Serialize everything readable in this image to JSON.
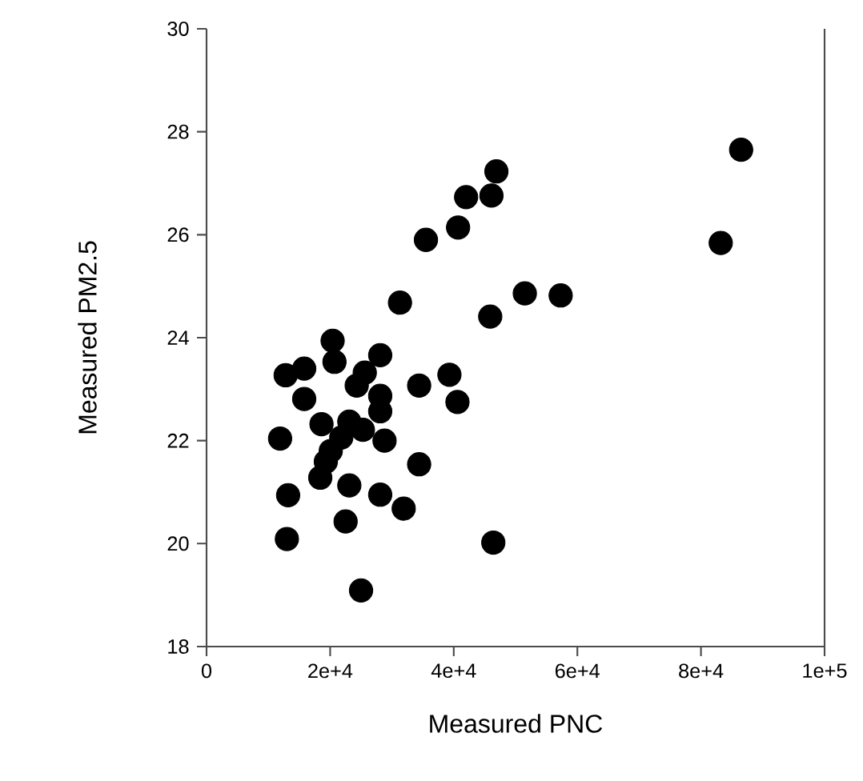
{
  "chart_data": {
    "type": "scatter",
    "xlabel": "Measured PNC",
    "ylabel": "Measured PM2.5",
    "x": [
      86500,
      83200,
      57300,
      51500,
      45900,
      46900,
      46100,
      42000,
      40700,
      35500,
      31300,
      46400,
      20400,
      28100,
      20700,
      15800,
      12800,
      25600,
      24300,
      34400,
      39300,
      40600,
      15800,
      28100,
      28100,
      18600,
      23100,
      11900,
      28800,
      21800,
      25300,
      20100,
      19300,
      18400,
      34400,
      13200,
      23100,
      28100,
      31900,
      22500,
      13000,
      25000
    ],
    "values": [
      27.65,
      25.84,
      24.82,
      24.86,
      24.41,
      27.23,
      26.76,
      26.73,
      26.14,
      25.9,
      24.68,
      20.02,
      23.94,
      23.66,
      23.53,
      23.4,
      23.27,
      23.32,
      23.07,
      23.07,
      23.28,
      22.75,
      22.81,
      22.87,
      22.57,
      22.32,
      22.37,
      22.04,
      22.0,
      22.06,
      22.21,
      21.8,
      21.59,
      21.28,
      21.54,
      20.94,
      21.13,
      20.95,
      20.68,
      20.43,
      20.09,
      19.09
    ],
    "color": "#000000",
    "marker": "circle",
    "xlim": [
      0,
      100000
    ],
    "ylim": [
      18,
      30
    ],
    "xticks": [
      0,
      {
        "value": 20000,
        "label": "2e+4"
      },
      {
        "value": 40000,
        "label": "4e+4"
      },
      {
        "value": 60000,
        "label": "6e+4"
      },
      {
        "value": 80000,
        "label": "8e+4"
      },
      {
        "value": 100000,
        "label": "1e+5"
      }
    ],
    "yticks": [
      18,
      20,
      22,
      24,
      26,
      28,
      30
    ]
  }
}
